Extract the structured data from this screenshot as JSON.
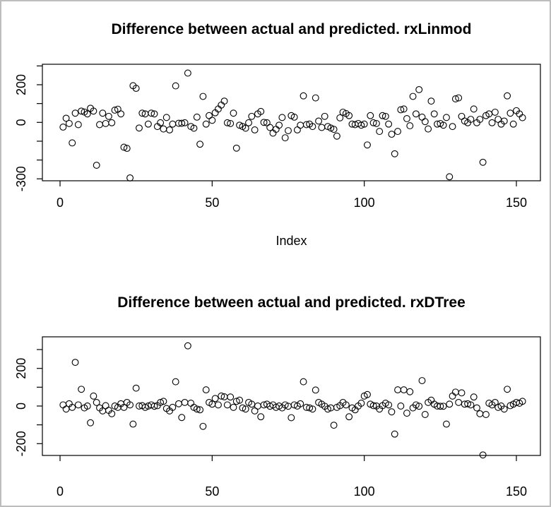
{
  "window": {
    "background": "#ffffff",
    "frame_color": "#bdbdbd",
    "point_color": "#000000",
    "axis_color": "#000000"
  },
  "chart_data": [
    {
      "type": "scatter",
      "title": "Difference between actual and predicted. rxLinmod",
      "xlabel": "Index",
      "ylabel": "",
      "marker": "open-circle",
      "grid": false,
      "legend": "none",
      "xlim": [
        -5,
        157
      ],
      "ylim": [
        -310,
        309
      ],
      "x_tick_values": [
        0,
        50,
        100,
        150
      ],
      "x_tick_labels": [
        "0",
        "50",
        "100",
        "150"
      ],
      "y_tick_values": [
        300,
        200,
        100,
        0,
        -100,
        -200,
        -300
      ],
      "y_tick_labels": [
        "",
        "200",
        "",
        "0",
        "",
        "",
        "-300"
      ],
      "points": [
        [
          1,
          -25
        ],
        [
          2,
          22
        ],
        [
          3,
          -6
        ],
        [
          4,
          -109
        ],
        [
          5,
          49
        ],
        [
          6,
          -12
        ],
        [
          7,
          60
        ],
        [
          8,
          55
        ],
        [
          9,
          45
        ],
        [
          10,
          75
        ],
        [
          11,
          60
        ],
        [
          12,
          -228
        ],
        [
          13,
          -12
        ],
        [
          14,
          49
        ],
        [
          15,
          -6
        ],
        [
          16,
          32
        ],
        [
          17,
          -2
        ],
        [
          18,
          65
        ],
        [
          19,
          70
        ],
        [
          20,
          45
        ],
        [
          21,
          -132
        ],
        [
          22,
          -138
        ],
        [
          23,
          -295
        ],
        [
          24,
          195
        ],
        [
          25,
          181
        ],
        [
          26,
          -30
        ],
        [
          27,
          49
        ],
        [
          28,
          45
        ],
        [
          29,
          -9
        ],
        [
          30,
          49
        ],
        [
          31,
          45
        ],
        [
          32,
          -22
        ],
        [
          33,
          -2
        ],
        [
          34,
          -35
        ],
        [
          35,
          26
        ],
        [
          36,
          -40
        ],
        [
          37,
          -9
        ],
        [
          38,
          194
        ],
        [
          39,
          -5
        ],
        [
          40,
          -5
        ],
        [
          41,
          -2
        ],
        [
          42,
          262
        ],
        [
          43,
          -22
        ],
        [
          44,
          -31
        ],
        [
          45,
          28
        ],
        [
          46,
          -116
        ],
        [
          47,
          138
        ],
        [
          48,
          -9
        ],
        [
          49,
          36
        ],
        [
          50,
          11
        ],
        [
          51,
          51
        ],
        [
          52,
          71
        ],
        [
          53,
          92
        ],
        [
          54,
          113
        ],
        [
          55,
          -2
        ],
        [
          56,
          -6
        ],
        [
          57,
          49
        ],
        [
          58,
          -137
        ],
        [
          59,
          -15
        ],
        [
          60,
          -22
        ],
        [
          61,
          -31
        ],
        [
          62,
          -2
        ],
        [
          63,
          32
        ],
        [
          64,
          -40
        ],
        [
          65,
          45
        ],
        [
          66,
          58
        ],
        [
          67,
          0
        ],
        [
          68,
          -2
        ],
        [
          69,
          -27
        ],
        [
          70,
          -57
        ],
        [
          71,
          -37
        ],
        [
          72,
          -15
        ],
        [
          73,
          26
        ],
        [
          74,
          -82
        ],
        [
          75,
          -44
        ],
        [
          76,
          36
        ],
        [
          77,
          28
        ],
        [
          78,
          -40
        ],
        [
          79,
          -15
        ],
        [
          80,
          141
        ],
        [
          81,
          -12
        ],
        [
          82,
          -9
        ],
        [
          83,
          -22
        ],
        [
          84,
          130
        ],
        [
          85,
          7
        ],
        [
          86,
          -27
        ],
        [
          87,
          32
        ],
        [
          88,
          -22
        ],
        [
          89,
          -30
        ],
        [
          90,
          -37
        ],
        [
          91,
          -73
        ],
        [
          92,
          24
        ],
        [
          93,
          54
        ],
        [
          94,
          47
        ],
        [
          95,
          36
        ],
        [
          96,
          -9
        ],
        [
          97,
          -12
        ],
        [
          98,
          -6
        ],
        [
          99,
          -15
        ],
        [
          100,
          -9
        ],
        [
          101,
          -120
        ],
        [
          102,
          36
        ],
        [
          103,
          -2
        ],
        [
          104,
          -6
        ],
        [
          105,
          -48
        ],
        [
          106,
          36
        ],
        [
          107,
          32
        ],
        [
          108,
          -9
        ],
        [
          109,
          -63
        ],
        [
          110,
          -167
        ],
        [
          111,
          -48
        ],
        [
          112,
          67
        ],
        [
          113,
          71
        ],
        [
          114,
          20
        ],
        [
          115,
          -18
        ],
        [
          116,
          138
        ],
        [
          117,
          45
        ],
        [
          118,
          174
        ],
        [
          119,
          28
        ],
        [
          120,
          4
        ],
        [
          121,
          -35
        ],
        [
          122,
          113
        ],
        [
          123,
          45
        ],
        [
          124,
          -9
        ],
        [
          125,
          -6
        ],
        [
          126,
          -15
        ],
        [
          127,
          26
        ],
        [
          128,
          -289
        ],
        [
          129,
          -22
        ],
        [
          130,
          125
        ],
        [
          131,
          130
        ],
        [
          132,
          32
        ],
        [
          133,
          7
        ],
        [
          134,
          -2
        ],
        [
          135,
          16
        ],
        [
          136,
          71
        ],
        [
          137,
          -2
        ],
        [
          138,
          16
        ],
        [
          139,
          -212
        ],
        [
          140,
          36
        ],
        [
          141,
          45
        ],
        [
          142,
          -2
        ],
        [
          143,
          54
        ],
        [
          144,
          16
        ],
        [
          145,
          -9
        ],
        [
          146,
          7
        ],
        [
          147,
          141
        ],
        [
          148,
          49
        ],
        [
          149,
          -9
        ],
        [
          150,
          62
        ],
        [
          151,
          45
        ],
        [
          152,
          25
        ]
      ]
    },
    {
      "type": "scatter",
      "title": "Difference between actual and predicted. rxDTree",
      "xlabel": "",
      "ylabel": "",
      "marker": "open-circle",
      "grid": false,
      "legend": "none",
      "xlim": [
        -5,
        157
      ],
      "ylim": [
        -263,
        368
      ],
      "x_tick_values": [
        0,
        50,
        100,
        150
      ],
      "x_tick_labels": [
        "0",
        "50",
        "100",
        "150"
      ],
      "y_tick_values": [
        300,
        200,
        100,
        0,
        -100,
        -200
      ],
      "y_tick_labels": [
        "",
        "200",
        "",
        "0",
        "",
        "-200"
      ],
      "points": [
        [
          1,
          6
        ],
        [
          2,
          -16
        ],
        [
          3,
          12
        ],
        [
          4,
          -7
        ],
        [
          5,
          232
        ],
        [
          6,
          6
        ],
        [
          7,
          89
        ],
        [
          8,
          -10
        ],
        [
          9,
          0
        ],
        [
          10,
          -89
        ],
        [
          11,
          53
        ],
        [
          12,
          19
        ],
        [
          13,
          -10
        ],
        [
          14,
          -26
        ],
        [
          15,
          2
        ],
        [
          16,
          -23
        ],
        [
          17,
          -41
        ],
        [
          18,
          0
        ],
        [
          19,
          -7
        ],
        [
          20,
          12
        ],
        [
          21,
          -7
        ],
        [
          22,
          19
        ],
        [
          23,
          6
        ],
        [
          24,
          -96
        ],
        [
          25,
          95
        ],
        [
          26,
          0
        ],
        [
          27,
          2
        ],
        [
          28,
          -7
        ],
        [
          29,
          0
        ],
        [
          30,
          6
        ],
        [
          31,
          -1
        ],
        [
          32,
          2
        ],
        [
          33,
          19
        ],
        [
          34,
          25
        ],
        [
          35,
          -13
        ],
        [
          36,
          -26
        ],
        [
          37,
          -7
        ],
        [
          38,
          129
        ],
        [
          39,
          12
        ],
        [
          40,
          -61
        ],
        [
          41,
          19
        ],
        [
          42,
          320
        ],
        [
          43,
          15
        ],
        [
          44,
          -7
        ],
        [
          45,
          -16
        ],
        [
          46,
          -20
        ],
        [
          47,
          -108
        ],
        [
          48,
          86
        ],
        [
          49,
          19
        ],
        [
          50,
          10
        ],
        [
          51,
          40
        ],
        [
          52,
          6
        ],
        [
          53,
          53
        ],
        [
          54,
          49
        ],
        [
          55,
          6
        ],
        [
          56,
          48
        ],
        [
          57,
          -7
        ],
        [
          58,
          25
        ],
        [
          59,
          31
        ],
        [
          60,
          -10
        ],
        [
          61,
          -16
        ],
        [
          62,
          19
        ],
        [
          63,
          10
        ],
        [
          64,
          -26
        ],
        [
          65,
          0
        ],
        [
          66,
          -57
        ],
        [
          67,
          6
        ],
        [
          68,
          10
        ],
        [
          69,
          -1
        ],
        [
          70,
          6
        ],
        [
          71,
          -7
        ],
        [
          72,
          0
        ],
        [
          73,
          -10
        ],
        [
          74,
          6
        ],
        [
          75,
          -1
        ],
        [
          76,
          -62
        ],
        [
          77,
          6
        ],
        [
          78,
          0
        ],
        [
          79,
          12
        ],
        [
          80,
          129
        ],
        [
          81,
          -7
        ],
        [
          82,
          -10
        ],
        [
          83,
          -16
        ],
        [
          84,
          85
        ],
        [
          85,
          19
        ],
        [
          86,
          10
        ],
        [
          87,
          -1
        ],
        [
          88,
          -16
        ],
        [
          89,
          -10
        ],
        [
          90,
          -102
        ],
        [
          91,
          -7
        ],
        [
          92,
          2
        ],
        [
          93,
          19
        ],
        [
          94,
          6
        ],
        [
          95,
          -57
        ],
        [
          96,
          -10
        ],
        [
          97,
          -20
        ],
        [
          98,
          0
        ],
        [
          99,
          15
        ],
        [
          100,
          53
        ],
        [
          101,
          61
        ],
        [
          102,
          10
        ],
        [
          103,
          2
        ],
        [
          104,
          0
        ],
        [
          105,
          -16
        ],
        [
          106,
          2
        ],
        [
          107,
          15
        ],
        [
          108,
          6
        ],
        [
          109,
          -31
        ],
        [
          110,
          -149
        ],
        [
          111,
          86
        ],
        [
          112,
          0
        ],
        [
          113,
          86
        ],
        [
          114,
          -38
        ],
        [
          115,
          76
        ],
        [
          116,
          -10
        ],
        [
          117,
          6
        ],
        [
          118,
          -1
        ],
        [
          119,
          135
        ],
        [
          120,
          -45
        ],
        [
          121,
          19
        ],
        [
          122,
          31
        ],
        [
          123,
          10
        ],
        [
          124,
          0
        ],
        [
          125,
          -1
        ],
        [
          126,
          -1
        ],
        [
          127,
          -96
        ],
        [
          128,
          10
        ],
        [
          129,
          53
        ],
        [
          130,
          74
        ],
        [
          131,
          19
        ],
        [
          132,
          70
        ],
        [
          133,
          10
        ],
        [
          134,
          12
        ],
        [
          135,
          6
        ],
        [
          136,
          48
        ],
        [
          137,
          -10
        ],
        [
          138,
          -41
        ],
        [
          139,
          -260
        ],
        [
          140,
          -45
        ],
        [
          141,
          15
        ],
        [
          142,
          6
        ],
        [
          143,
          19
        ],
        [
          144,
          -7
        ],
        [
          145,
          0
        ],
        [
          146,
          -16
        ],
        [
          147,
          89
        ],
        [
          148,
          2
        ],
        [
          149,
          10
        ],
        [
          150,
          19
        ],
        [
          151,
          15
        ],
        [
          152,
          25
        ]
      ]
    }
  ]
}
